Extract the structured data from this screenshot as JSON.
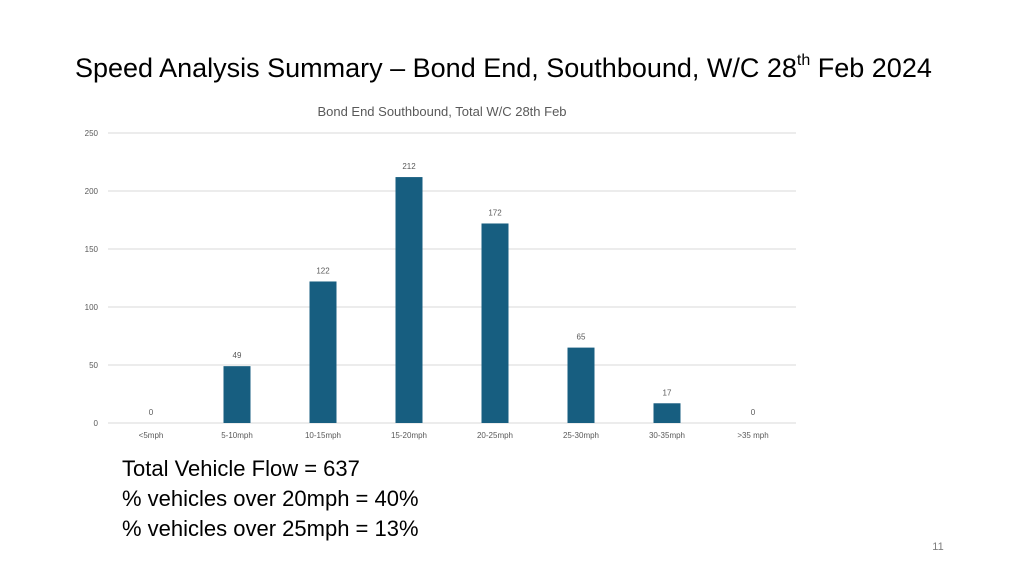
{
  "slide": {
    "title_main": "Speed Analysis Summary – Bond End, Southbound, W/C 28",
    "title_sup": "th",
    "title_tail": " Feb 2024",
    "summary": [
      "Total Vehicle Flow = 637",
      "% vehicles over 20mph = 40%",
      "% vehicles over 25mph = 13%"
    ],
    "page_number": "11"
  },
  "chart_data": {
    "type": "bar",
    "title": "Bond End Southbound, Total W/C  28th Feb",
    "xlabel": "",
    "ylabel": "",
    "categories": [
      "<5mph",
      "5-10mph",
      "10-15mph",
      "15-20mph",
      "20-25mph",
      "25-30mph",
      "30-35mph",
      ">35 mph"
    ],
    "values": [
      0,
      49,
      122,
      212,
      172,
      65,
      17,
      0
    ],
    "ylim": [
      0,
      250
    ],
    "yticks": [
      0,
      50,
      100,
      150,
      200,
      250
    ],
    "grid": true,
    "legend": "none",
    "bar_color": "#175e80",
    "grid_color": "#d9d9d9",
    "label_color": "#595959"
  }
}
